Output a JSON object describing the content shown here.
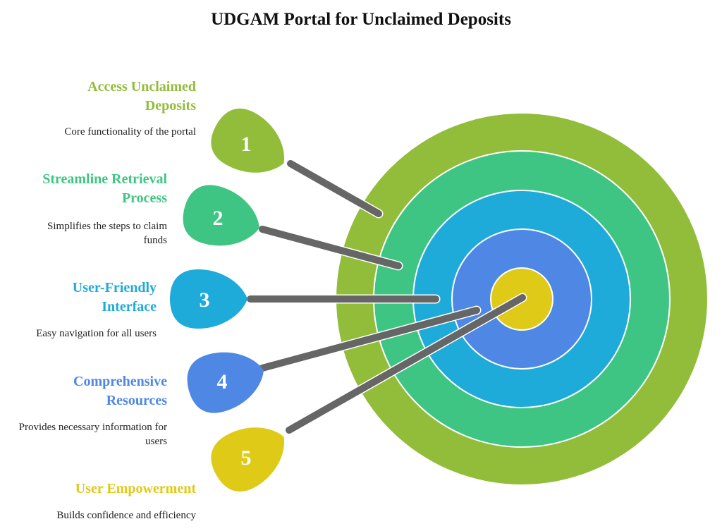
{
  "title": "UDGAM Portal for Unclaimed Deposits",
  "colors": {
    "ring1": "#92bd3a",
    "ring2": "#3fc583",
    "ring3": "#1fabd9",
    "ring4": "#4e88e4",
    "ring5": "#dfca17",
    "shaft": "#666666"
  },
  "items": [
    {
      "number": "1",
      "title": "Access Unclaimed Deposits",
      "description": "Core functionality of the portal",
      "color": "#92bd3a"
    },
    {
      "number": "2",
      "title": "Streamline Retrieval Process",
      "description": "Simplifies the steps to claim funds",
      "color": "#3fc583"
    },
    {
      "number": "3",
      "title": "User-Friendly Interface",
      "description": "Easy navigation for all users",
      "color": "#1fabd9"
    },
    {
      "number": "4",
      "title": "Comprehensive Resources",
      "description": "Provides necessary information for users",
      "color": "#4e88e4"
    },
    {
      "number": "5",
      "title": "User Empowerment",
      "description": "Builds confidence and efficiency",
      "color": "#dfca17"
    }
  ]
}
